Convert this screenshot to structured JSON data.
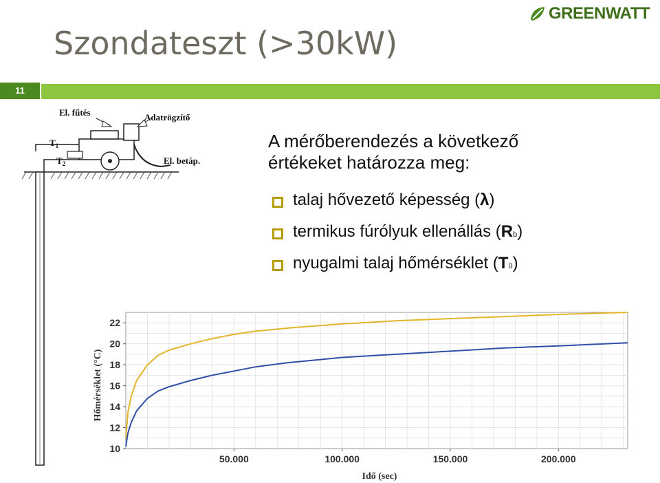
{
  "slide": {
    "title": "Szondateszt (>30kW)",
    "number": "11",
    "logo_text": "GREENWATT",
    "intro_line1": "A mérőberendezés a következő",
    "intro_line2": "értékeket határozza meg:",
    "bullets": [
      {
        "text": "talaj hővezető képesség (",
        "symbol": "λ",
        "sub": "",
        "close": ")"
      },
      {
        "text": "termikus fúrólyuk ellenállás (",
        "symbol": "R",
        "sub": "b",
        "close": ")"
      },
      {
        "text": "nyugalmi talaj hőmérséklet (",
        "symbol": "T",
        "sub": "0",
        "close": ")"
      }
    ]
  },
  "diagram": {
    "labels": {
      "heating": "El. fűtés",
      "logger": "Adatrögzítő",
      "power": "El. betáp.",
      "t1": "T",
      "t1_sub": "1",
      "t2": "T",
      "t2_sub": "2"
    }
  },
  "colors": {
    "accent_green": "#8cc63f",
    "dark_green": "#4a8a1e",
    "bullet": "#b59d00",
    "curve_upper": "#e2b52a",
    "curve_lower": "#2f4fa8"
  },
  "chart_data": {
    "type": "line",
    "xlabel": "Idő (sec)",
    "ylabel": "Hőmérséklet (°C)",
    "xlim": [
      0,
      232000
    ],
    "ylim": [
      10,
      23
    ],
    "xticks": [
      50000,
      100000,
      150000,
      200000
    ],
    "xtick_labels": [
      "50.000",
      "100.000",
      "150.000",
      "200.000"
    ],
    "yticks": [
      10,
      12,
      14,
      16,
      18,
      20,
      22
    ],
    "ytick_labels": [
      "10",
      "12",
      "14",
      "16",
      "18",
      "20",
      "22"
    ],
    "grid": true,
    "series": [
      {
        "color": "#e2b52a",
        "x": [
          0,
          1000,
          2500,
          5000,
          10000,
          15000,
          20000,
          30000,
          40000,
          50000,
          60000,
          75000,
          100000,
          125000,
          150000,
          175000,
          200000,
          232000
        ],
        "y": [
          11.0,
          13.5,
          15.0,
          16.5,
          18.0,
          18.9,
          19.4,
          20.0,
          20.5,
          20.9,
          21.2,
          21.5,
          21.9,
          22.2,
          22.4,
          22.6,
          22.8,
          23.0
        ]
      },
      {
        "color": "#2f4fa8",
        "x": [
          0,
          1000,
          2500,
          5000,
          10000,
          15000,
          20000,
          30000,
          40000,
          50000,
          60000,
          75000,
          100000,
          125000,
          150000,
          175000,
          200000,
          232000
        ],
        "y": [
          10.2,
          11.5,
          12.5,
          13.6,
          14.8,
          15.5,
          15.9,
          16.5,
          17.0,
          17.4,
          17.8,
          18.2,
          18.7,
          19.0,
          19.3,
          19.6,
          19.8,
          20.1
        ]
      }
    ]
  }
}
